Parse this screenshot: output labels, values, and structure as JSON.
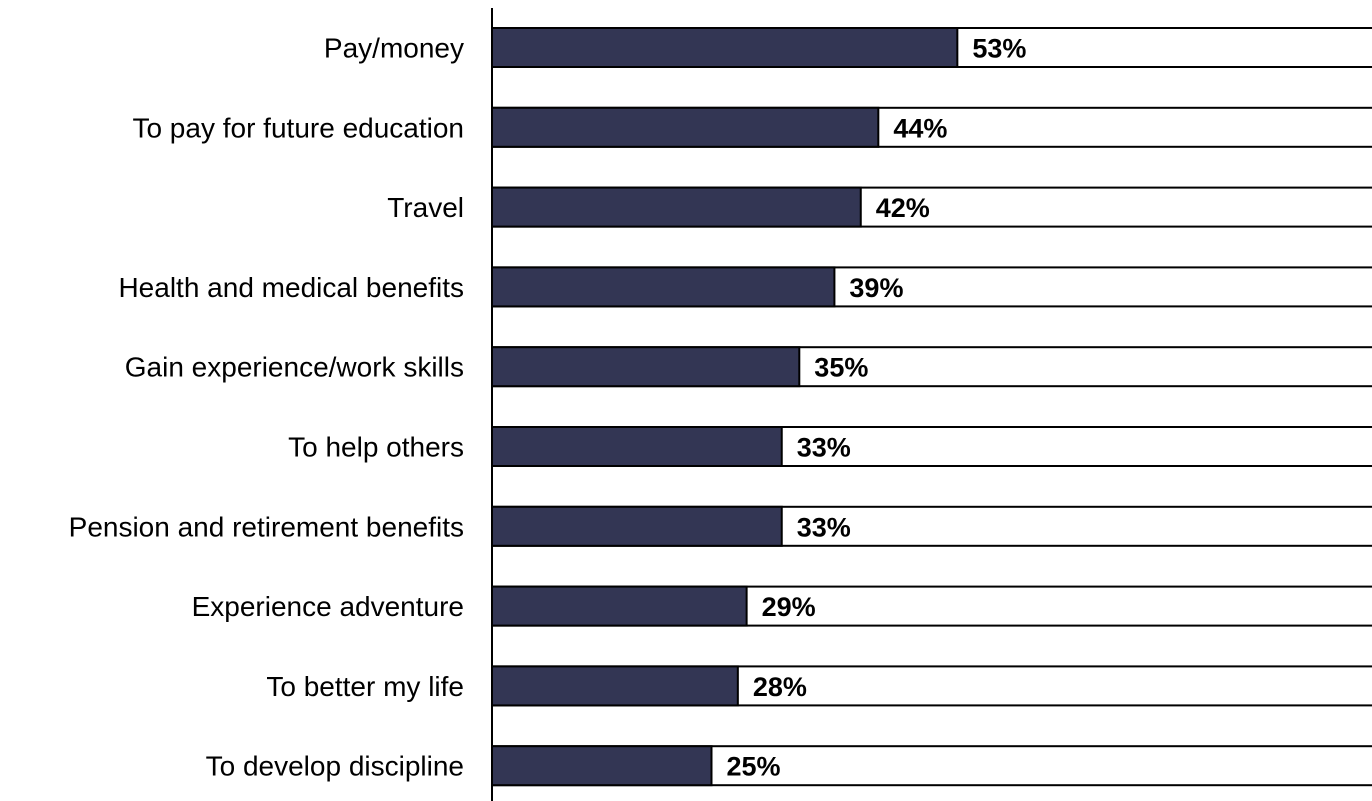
{
  "colors": {
    "bar_fill": "#333654",
    "track_stroke": "#000000",
    "background": "#ffffff"
  },
  "chart_data": {
    "type": "bar",
    "orientation": "horizontal",
    "title": "",
    "xlabel": "",
    "ylabel": "",
    "xlim": [
      0,
      100
    ],
    "grid": false,
    "legend": "none",
    "categories": [
      "Pay/money",
      "To pay for future education",
      "Travel",
      "Health and medical benefits",
      "Gain experience/work skills",
      "To help others",
      "Pension and retirement benefits",
      "Experience adventure",
      "To better my life",
      "To develop discipline"
    ],
    "values": [
      53,
      44,
      42,
      39,
      35,
      33,
      33,
      29,
      28,
      25
    ],
    "data_labels": [
      "53%",
      "44%",
      "42%",
      "39%",
      "35%",
      "33%",
      "33%",
      "29%",
      "28%",
      "25%"
    ]
  }
}
